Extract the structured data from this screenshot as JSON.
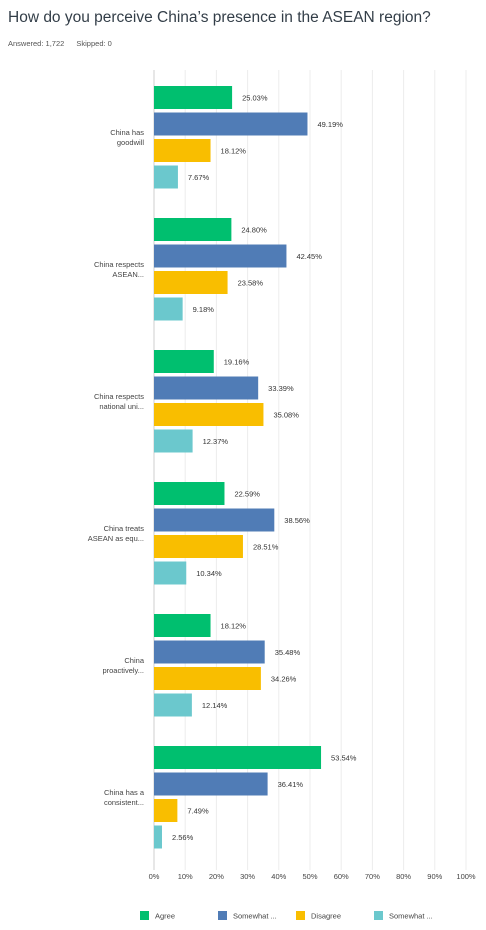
{
  "question": {
    "title": "How do you perceive China’s presence in the ASEAN region?",
    "answered": "Answered: 1,722",
    "skipped": "Skipped: 0"
  },
  "chart_data": {
    "type": "bar",
    "orientation": "horizontal",
    "categories": [
      [
        "China has",
        "goodwill"
      ],
      [
        "China respects",
        "ASEAN..."
      ],
      [
        "China respects",
        "national uni..."
      ],
      [
        "China treats",
        "ASEAN as equ..."
      ],
      [
        "China",
        "proactively..."
      ],
      [
        "China has a",
        "consistent..."
      ]
    ],
    "series": [
      {
        "name": "Agree",
        "color": "#00bf6f",
        "values": [
          25.03,
          24.8,
          19.16,
          22.59,
          18.12,
          53.54
        ]
      },
      {
        "name": "Somewhat ...",
        "color": "#507cb6",
        "values": [
          49.19,
          42.45,
          33.39,
          38.56,
          35.48,
          36.41
        ]
      },
      {
        "name": "Disagree",
        "color": "#f9be00",
        "values": [
          18.12,
          23.58,
          35.08,
          28.51,
          34.26,
          7.49
        ]
      },
      {
        "name": "Somewhat ...",
        "color": "#6bc8cd",
        "values": [
          7.67,
          9.18,
          12.37,
          10.34,
          12.14,
          2.56
        ]
      }
    ],
    "value_labels": [
      [
        "25.03%",
        "49.19%",
        "18.12%",
        "7.67%"
      ],
      [
        "24.80%",
        "42.45%",
        "23.58%",
        "9.18%"
      ],
      [
        "19.16%",
        "33.39%",
        "35.08%",
        "12.37%"
      ],
      [
        "22.59%",
        "38.56%",
        "28.51%",
        "10.34%"
      ],
      [
        "18.12%",
        "35.48%",
        "34.26%",
        "12.14%"
      ],
      [
        "53.54%",
        "36.41%",
        "7.49%",
        "2.56%"
      ]
    ],
    "x_ticks": [
      "0%",
      "10%",
      "20%",
      "30%",
      "40%",
      "50%",
      "60%",
      "70%",
      "80%",
      "90%",
      "100%"
    ],
    "xlim": [
      0,
      100
    ],
    "grid": true,
    "legend_position": "bottom"
  }
}
